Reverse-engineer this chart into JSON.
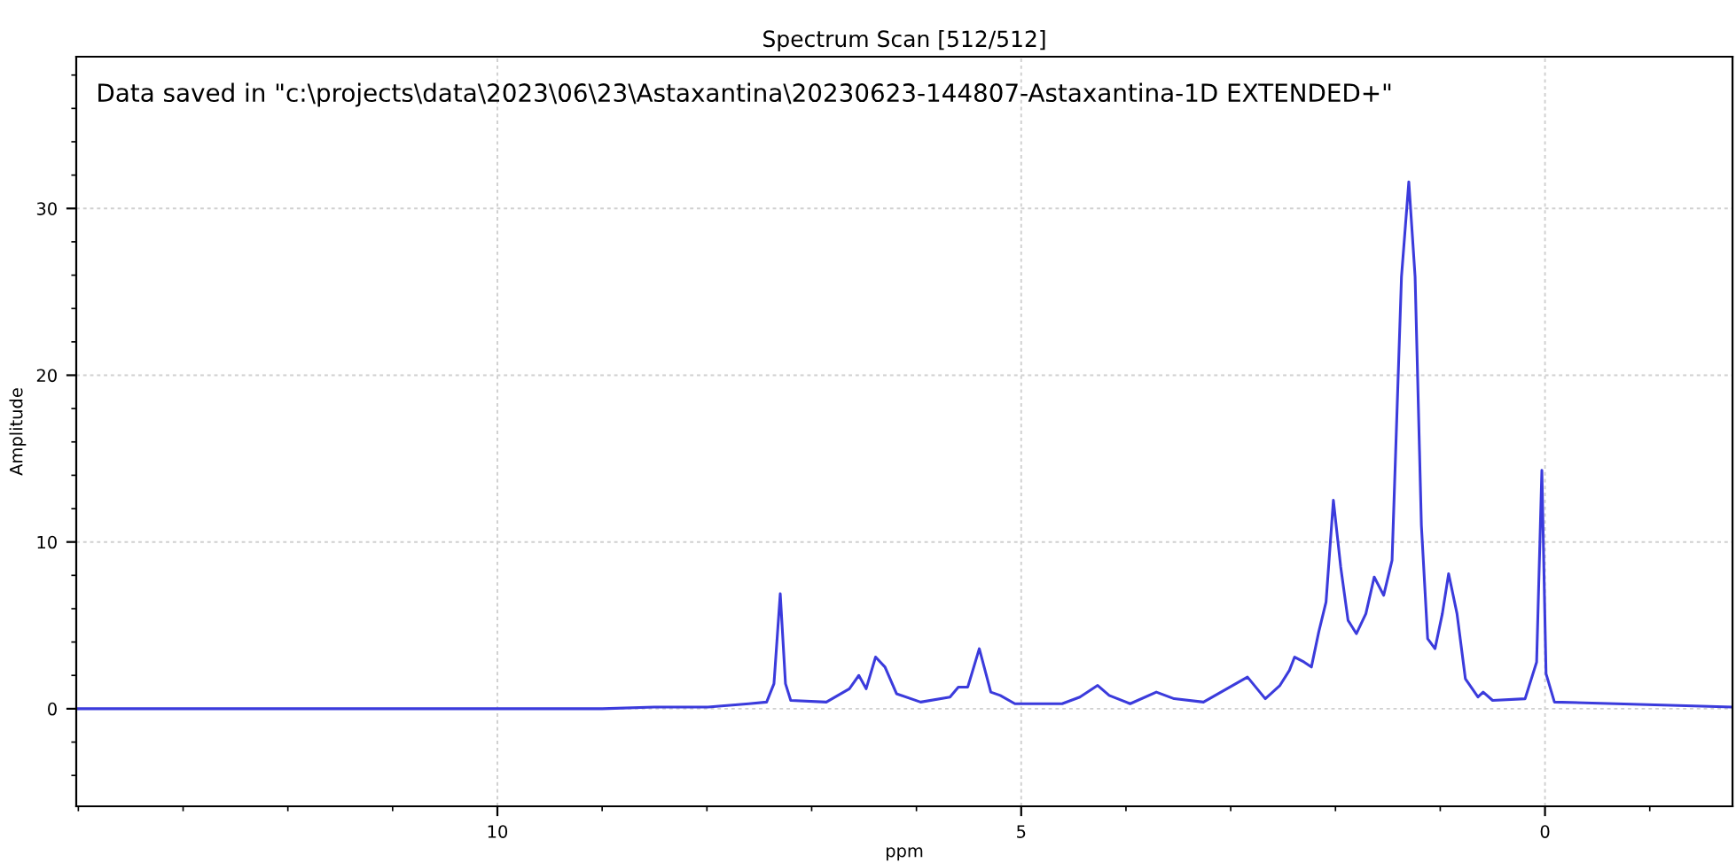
{
  "chart_data": {
    "type": "line",
    "title": "Spectrum Scan [512/512]",
    "xlabel": "ppm",
    "ylabel": "Amplitude",
    "annotations": [
      "Data saved in \"c:\\projects\\data\\2023\\06\\23\\Astaxantina\\20230623-144807-Astaxantina-1D EXTENDED+\""
    ],
    "xlim": [
      14.02,
      -1.79
    ],
    "xticks": [
      10,
      5,
      0
    ],
    "ylim": [
      -5.85,
      39.1
    ],
    "yticks": [
      0,
      10,
      20,
      30
    ],
    "grid": true,
    "marker": "none",
    "line_style": "solid",
    "series": [
      {
        "color": "#3b3bdc",
        "x": [
          14.0,
          12.0,
          10.0,
          9.0,
          8.5,
          7.99,
          7.6,
          7.43,
          7.36,
          7.3,
          7.25,
          7.2,
          6.86,
          6.64,
          6.55,
          6.48,
          6.39,
          6.3,
          6.19,
          5.96,
          5.68,
          5.6,
          5.51,
          5.4,
          5.29,
          5.2,
          5.06,
          4.61,
          4.44,
          4.27,
          4.16,
          3.96,
          3.71,
          3.54,
          3.26,
          2.84,
          2.67,
          2.53,
          2.44,
          2.39,
          2.3,
          2.23,
          2.16,
          2.09,
          2.02,
          1.95,
          1.88,
          1.8,
          1.71,
          1.63,
          1.54,
          1.46,
          1.37,
          1.3,
          1.24,
          1.18,
          1.12,
          1.05,
          0.98,
          0.92,
          0.84,
          0.76,
          0.64,
          0.59,
          0.5,
          0.19,
          0.08,
          0.03,
          -0.01,
          -0.09,
          -0.68,
          -1.79
        ],
        "values": [
          0.0,
          0.0,
          0.0,
          0.0,
          0.1,
          0.1,
          0.3,
          0.4,
          1.5,
          6.9,
          1.5,
          0.5,
          0.4,
          1.2,
          2.0,
          1.2,
          3.1,
          2.5,
          0.9,
          0.4,
          0.7,
          1.3,
          1.3,
          3.6,
          1.0,
          0.8,
          0.3,
          0.3,
          0.7,
          1.4,
          0.8,
          0.3,
          1.0,
          0.6,
          0.4,
          1.9,
          0.6,
          1.4,
          2.3,
          3.1,
          2.8,
          2.5,
          4.6,
          6.4,
          12.5,
          8.5,
          5.3,
          4.5,
          5.7,
          7.9,
          6.8,
          8.9,
          25.9,
          31.6,
          25.9,
          11.0,
          4.2,
          3.6,
          5.7,
          8.1,
          5.7,
          1.8,
          0.7,
          1.0,
          0.5,
          0.6,
          2.8,
          14.3,
          2.1,
          0.4,
          0.3,
          0.1
        ]
      }
    ]
  }
}
